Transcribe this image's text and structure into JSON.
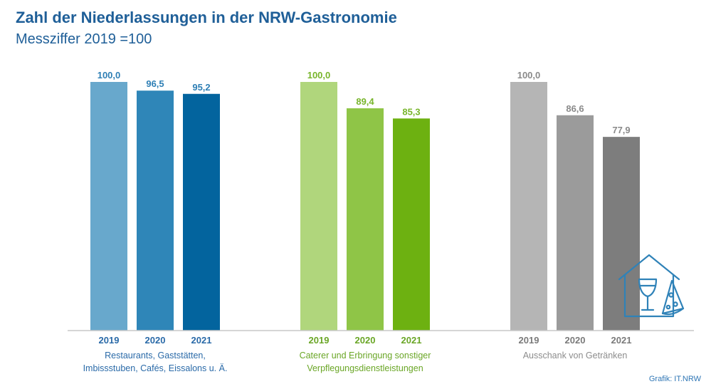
{
  "header": {
    "title": "Zahl der Niederlassungen in der NRW-Gastronomie",
    "subtitle": "Messziffer 2019 =100"
  },
  "source": "Grafik: IT.NRW",
  "icon": "house-wine-pizza-icon",
  "chart_data": {
    "type": "bar",
    "categories": [
      "2019",
      "2020",
      "2021"
    ],
    "ylim": [
      0,
      100
    ],
    "grid": false,
    "legend": "none",
    "groups": [
      {
        "label_lines": [
          "Restaurants, Gaststätten,",
          "Imbissstuben, Cafés, Eissalons u. Ä."
        ],
        "label_color": "#2a6aa8",
        "year_color": "#2a6aa8",
        "value_color": "#2e7fb5",
        "values": [
          100.0,
          96.5,
          95.2
        ],
        "value_labels": [
          "100,0",
          "96,5",
          "95,2"
        ],
        "colors": [
          "#68a8cc",
          "#2f86b8",
          "#03649e"
        ]
      },
      {
        "label_lines": [
          "Caterer und Erbringung sonstiger",
          "Verpflegungsdienstleistungen"
        ],
        "label_color": "#6aa626",
        "year_color": "#6aa626",
        "value_color": "#78b52b",
        "values": [
          100.0,
          89.4,
          85.3
        ],
        "value_labels": [
          "100,0",
          "89,4",
          "85,3"
        ],
        "colors": [
          "#b0d67c",
          "#8fc547",
          "#6db111"
        ]
      },
      {
        "label_lines": [
          "Ausschank von Getränken"
        ],
        "label_color": "#8c8c8c",
        "year_color": "#7a7a7a",
        "value_color": "#8a8a8a",
        "values": [
          100.0,
          86.6,
          77.9
        ],
        "value_labels": [
          "100,0",
          "86,6",
          "77,9"
        ],
        "colors": [
          "#b5b5b5",
          "#9b9b9b",
          "#7d7d7d"
        ]
      }
    ]
  }
}
